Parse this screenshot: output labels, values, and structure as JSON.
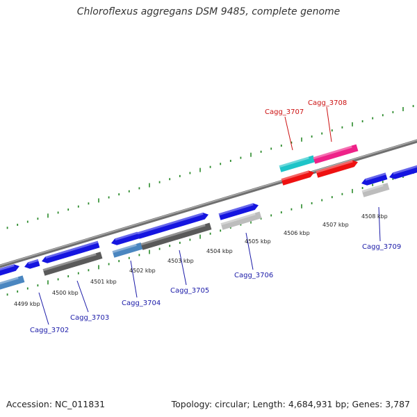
{
  "title": "Chloroflexus aggregans DSM 9485, complete genome",
  "footer": {
    "accession": "Accession: NC_011831",
    "summary": "Topology: circular; Length: 4,684,931 bp; Genes: 3,787"
  },
  "colors": {
    "backbone": "#8a8a8a",
    "tick": "#2a8a2a",
    "label_blue": "#1a1aa8",
    "label_red": "#cc1111",
    "gene_blue": "#1515e0",
    "gene_steelblue": "#4a86c0",
    "gene_gray": "#5a5a5a",
    "gene_lightgray": "#bdbdbd",
    "gene_cyan": "#1ec4c8",
    "gene_red": "#ee1111",
    "gene_magenta": "#ee2288"
  },
  "scale": {
    "ticks": [
      {
        "label": "4499 kbp",
        "kbp": 4499
      },
      {
        "label": "4500 kbp",
        "kbp": 4500
      },
      {
        "label": "4501 kbp",
        "kbp": 4501
      },
      {
        "label": "4502 kbp",
        "kbp": 4502
      },
      {
        "label": "4503 kbp",
        "kbp": 4503
      },
      {
        "label": "4504 kbp",
        "kbp": 4504
      },
      {
        "label": "4505 kbp",
        "kbp": 4505
      },
      {
        "label": "4506 kbp",
        "kbp": 4506
      },
      {
        "label": "4507 kbp",
        "kbp": 4507
      },
      {
        "label": "4508 kbp",
        "kbp": 4508
      }
    ]
  },
  "gene_labels": [
    {
      "name": "Cagg_3702",
      "color": "label_blue"
    },
    {
      "name": "Cagg_3703",
      "color": "label_blue"
    },
    {
      "name": "Cagg_3704",
      "color": "label_blue"
    },
    {
      "name": "Cagg_3705",
      "color": "label_blue"
    },
    {
      "name": "Cagg_3706",
      "color": "label_blue"
    },
    {
      "name": "Cagg_3707",
      "color": "label_red"
    },
    {
      "name": "Cagg_3708",
      "color": "label_red"
    },
    {
      "name": "Cagg_3709",
      "color": "label_blue"
    }
  ]
}
